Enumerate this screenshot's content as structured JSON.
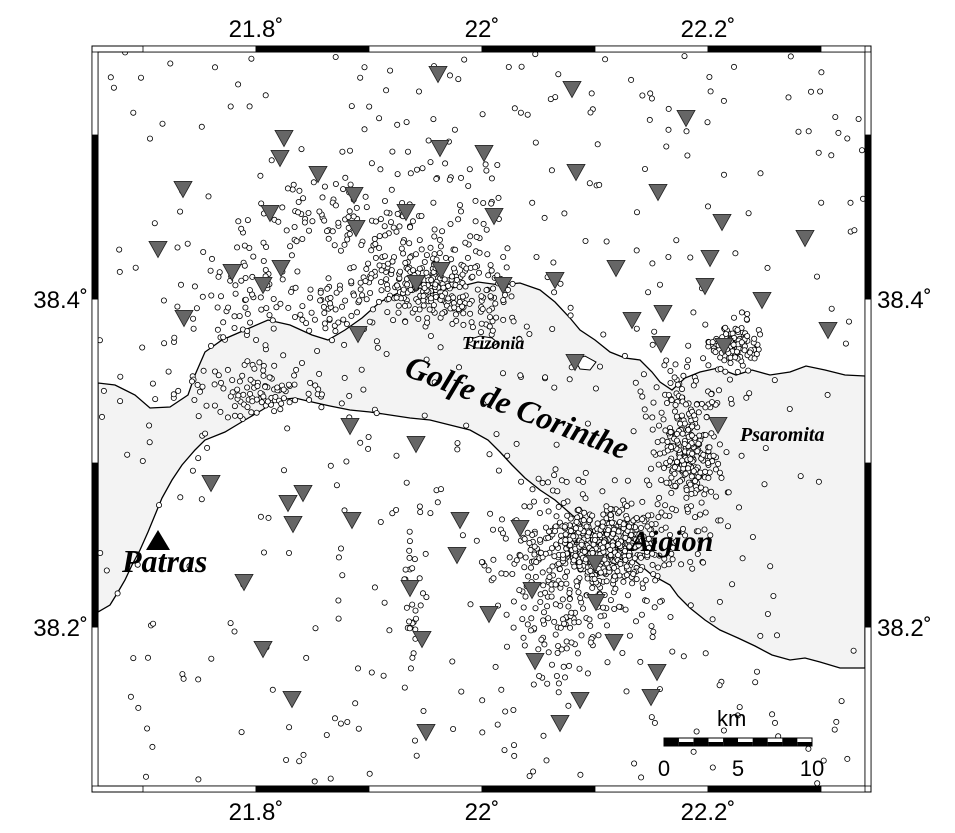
{
  "map": {
    "x_ticks": [
      {
        "lon": 21.8,
        "label": "21.8˚"
      },
      {
        "lon": 22.0,
        "label": "22˚"
      },
      {
        "lon": 22.2,
        "label": "22.2˚"
      }
    ],
    "y_ticks": [
      {
        "lat": 38.4,
        "label": "38.4˚"
      },
      {
        "lat": 38.2,
        "label": "38.2˚"
      }
    ],
    "places": {
      "patras": "Patras",
      "aigion": "Aigion",
      "psaromita": "Psaromita",
      "trizonia": "Trizonia",
      "gulf": "Golfe de Corinthe"
    },
    "scale_bar": {
      "unit": "km",
      "labels": [
        "0",
        "5",
        "10"
      ]
    },
    "colors": {
      "land": "#ffffff",
      "sea": "#f3f3f3",
      "station": "#666666",
      "city_marker": "#000000",
      "event": "#000000"
    }
  }
}
